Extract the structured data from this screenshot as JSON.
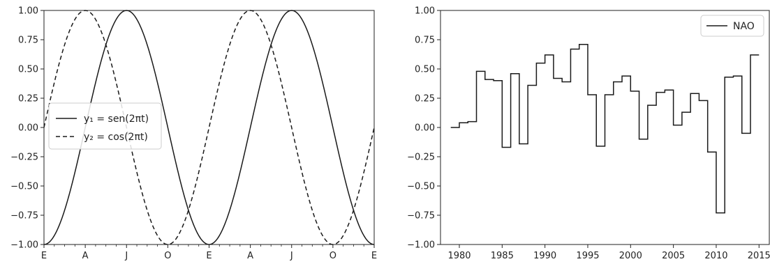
{
  "chart_data": [
    {
      "type": "line",
      "x_tick_labels": [
        "E",
        "A",
        "J",
        "O",
        "E",
        "A",
        "J",
        "O",
        "E"
      ],
      "x_minor_ticks_per_major": 3,
      "ylim": [
        -1.0,
        1.0
      ],
      "y_ticks": [
        "1.00",
        "0.75",
        "0.50",
        "0.25",
        "0.00",
        "−0.25",
        "−0.50",
        "−0.75",
        "−1.00"
      ],
      "x_domain": [
        -0.25,
        1.75
      ],
      "series": [
        {
          "name": "y₁ = sen(2πt)",
          "style": "solid",
          "function": "sin",
          "color": "#1a1a1a"
        },
        {
          "name": "y₂ = cos(2πt)",
          "style": "dashed",
          "function": "cos",
          "color": "#1a1a1a"
        }
      ],
      "legend": "center-left"
    },
    {
      "type": "line",
      "drawstyle": "steps-post",
      "xlim": [
        1977.8,
        2016.2
      ],
      "ylim": [
        -1.0,
        1.0
      ],
      "x_ticks": [
        "1980",
        "1985",
        "1990",
        "1995",
        "2000",
        "2005",
        "2010",
        "2015"
      ],
      "y_ticks": [
        "1.00",
        "0.75",
        "0.50",
        "0.25",
        "0.00",
        "−0.25",
        "−0.50",
        "−0.75",
        "−1.00"
      ],
      "series": [
        {
          "name": "NAO",
          "color": "#1a1a1a",
          "x": [
            1979,
            1980,
            1981,
            1982,
            1983,
            1984,
            1985,
            1986,
            1987,
            1988,
            1989,
            1990,
            1991,
            1992,
            1993,
            1994,
            1995,
            1996,
            1997,
            1998,
            1999,
            2000,
            2001,
            2002,
            2003,
            2004,
            2005,
            2006,
            2007,
            2008,
            2009,
            2010,
            2011,
            2012,
            2013,
            2014,
            2015
          ],
          "values": [
            0.0,
            0.04,
            0.05,
            0.48,
            0.41,
            0.4,
            -0.17,
            0.46,
            -0.14,
            0.36,
            0.55,
            0.62,
            0.42,
            0.39,
            0.67,
            0.71,
            0.28,
            -0.16,
            0.28,
            0.39,
            0.44,
            0.31,
            -0.1,
            0.19,
            0.3,
            0.32,
            0.02,
            0.13,
            0.29,
            0.23,
            -0.21,
            -0.73,
            0.43,
            0.44,
            -0.05,
            0.62,
            0.62
          ]
        }
      ],
      "legend": "top-right"
    }
  ]
}
